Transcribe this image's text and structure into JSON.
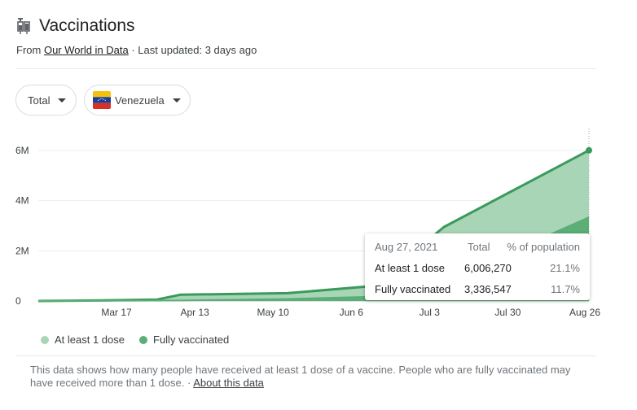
{
  "header": {
    "title": "Vaccinations",
    "subtitle_prefix": "From ",
    "source_link": "Our World in Data",
    "subtitle_suffix": " · Last updated: 3 days ago",
    "icon": "syringe-icon"
  },
  "filters": {
    "metric": "Total",
    "country": "Venezuela"
  },
  "colors": {
    "at_least_one": "#a8d5b6",
    "fully": "#5aae76",
    "line": "#3a9a5c",
    "grid": "#eeeeee"
  },
  "chart_data": {
    "type": "area",
    "ylim": [
      0,
      6000000
    ],
    "y_ticks": [
      {
        "value": 0,
        "label": "0"
      },
      {
        "value": 2000000,
        "label": "2M"
      },
      {
        "value": 4000000,
        "label": "4M"
      },
      {
        "value": 6000000,
        "label": "6M"
      }
    ],
    "x_ticks": [
      "Mar 17",
      "Apr 13",
      "May 10",
      "Jun 6",
      "Jul 3",
      "Jul 30",
      "Aug 26"
    ],
    "x_range": [
      "2021-02-18",
      "2021-08-27"
    ],
    "series": [
      {
        "name": "At least 1 dose",
        "points": [
          [
            "2021-02-18",
            0
          ],
          [
            "2021-03-10",
            20000
          ],
          [
            "2021-03-31",
            60000
          ],
          [
            "2021-04-08",
            250000
          ],
          [
            "2021-05-01",
            290000
          ],
          [
            "2021-05-15",
            310000
          ],
          [
            "2021-06-13",
            590000
          ],
          [
            "2021-07-08",
            2950000
          ],
          [
            "2021-08-27",
            6006270
          ]
        ]
      },
      {
        "name": "Fully vaccinated",
        "points": [
          [
            "2021-02-18",
            0
          ],
          [
            "2021-04-08",
            20000
          ],
          [
            "2021-05-15",
            80000
          ],
          [
            "2021-06-13",
            170000
          ],
          [
            "2021-07-08",
            780000
          ],
          [
            "2021-08-27",
            3336547
          ]
        ]
      }
    ]
  },
  "tooltip": {
    "date": "Aug 27, 2021",
    "col_total": "Total",
    "col_pct": "% of population",
    "rows": [
      {
        "label": "At least 1 dose",
        "total": "6,006,270",
        "pct": "21.1%"
      },
      {
        "label": "Fully vaccinated",
        "total": "3,336,547",
        "pct": "11.7%"
      }
    ]
  },
  "legend": {
    "items": [
      "At least 1 dose",
      "Fully vaccinated"
    ]
  },
  "footnote": {
    "text": "This data shows how many people have received at least 1 dose of a vaccine. People who are fully vaccinated may have received more than 1 dose.",
    "separator": " · ",
    "link": "About this data"
  }
}
